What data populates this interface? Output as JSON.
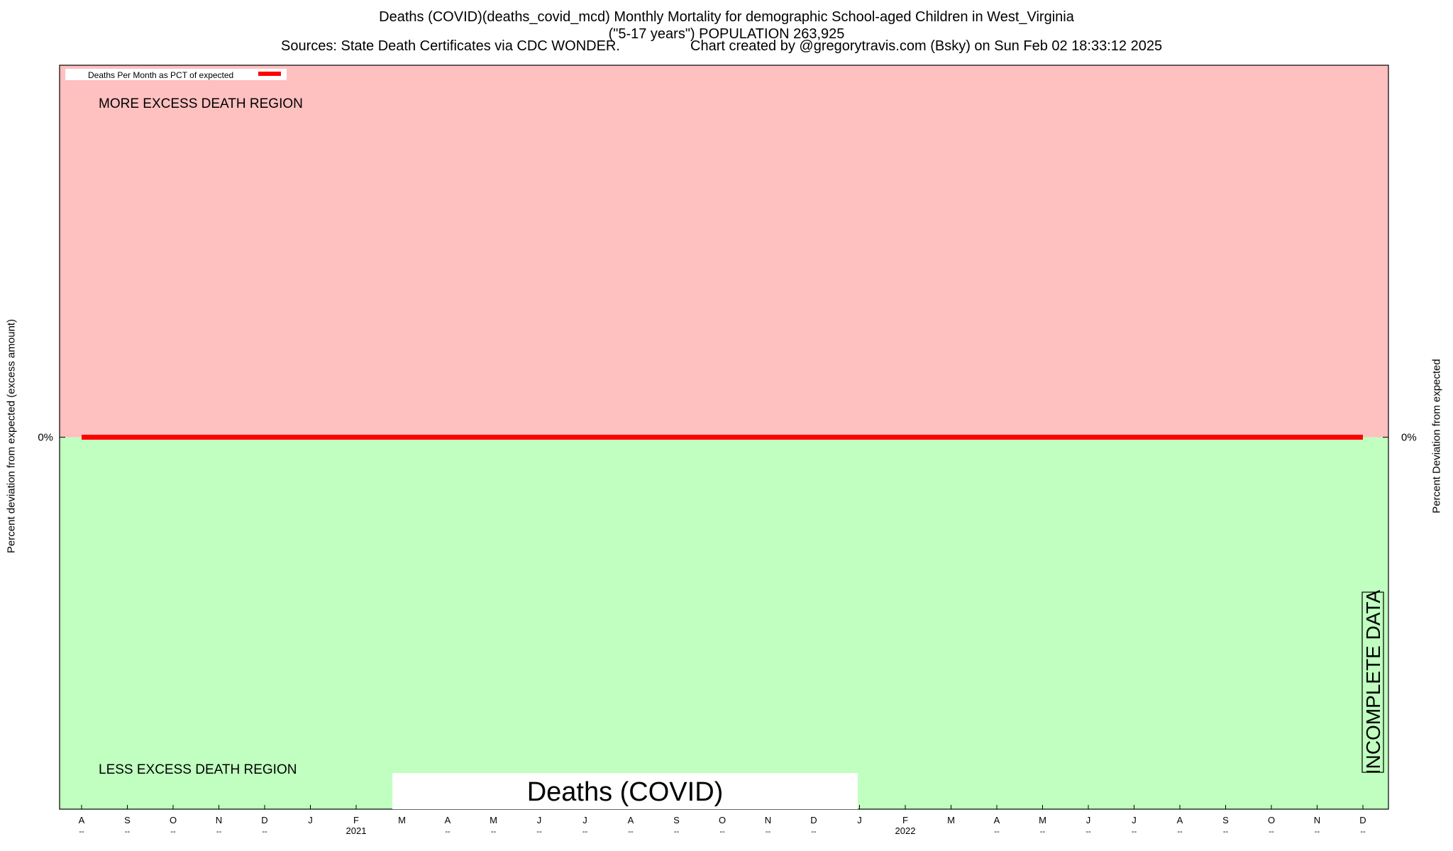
{
  "chart_data": {
    "type": "line",
    "title_lines": [
      "Deaths (COVID)(deaths_covid_mcd) Monthly Mortality for demographic School-aged Children in West_Virginia",
      "(\"5-17 years\") POPULATION 263,925"
    ],
    "sources": "Sources: State Death Certificates via CDC WONDER.",
    "credit": "Chart created by @gregorytravis.com (Bsky) on Sun Feb 02 18:33:12 2025",
    "ylabel_left": "Percent deviation from expected (excess amount)",
    "ylabel_right": "Percent Deviation from expected",
    "y_tick_label_left": "0%",
    "y_tick_label_right": "0%",
    "y_tick_value": 0,
    "ylim": [
      -100,
      100
    ],
    "grid": false,
    "legend_position": "top-left",
    "legend": "Deaths Per Month as PCT of expected",
    "region_upper_label": "MORE EXCESS DEATH REGION",
    "region_lower_label": "LESS EXCESS DEATH REGION",
    "incomplete_label": "INCOMPLETE DATA",
    "bottom_label": "Deaths (COVID)",
    "colors": {
      "upper_region": "#ffc0c0",
      "lower_region": "#c0ffc0",
      "series_line": "#ff0000"
    },
    "x_ticks": [
      {
        "month": "A",
        "sub": "--"
      },
      {
        "month": "S",
        "sub": "--"
      },
      {
        "month": "O",
        "sub": "--"
      },
      {
        "month": "N",
        "sub": "--"
      },
      {
        "month": "D",
        "sub": "--"
      },
      {
        "month": "J",
        "sub": ""
      },
      {
        "month": "F",
        "sub": "2021"
      },
      {
        "month": "M",
        "sub": ""
      },
      {
        "month": "A",
        "sub": "--"
      },
      {
        "month": "M",
        "sub": "--"
      },
      {
        "month": "J",
        "sub": "--"
      },
      {
        "month": "J",
        "sub": "--"
      },
      {
        "month": "A",
        "sub": "--"
      },
      {
        "month": "S",
        "sub": "--"
      },
      {
        "month": "O",
        "sub": "--"
      },
      {
        "month": "N",
        "sub": "--"
      },
      {
        "month": "D",
        "sub": "--"
      },
      {
        "month": "J",
        "sub": ""
      },
      {
        "month": "F",
        "sub": "2022"
      },
      {
        "month": "M",
        "sub": ""
      },
      {
        "month": "A",
        "sub": "--"
      },
      {
        "month": "M",
        "sub": "--"
      },
      {
        "month": "J",
        "sub": "--"
      },
      {
        "month": "J",
        "sub": "--"
      },
      {
        "month": "A",
        "sub": "--"
      },
      {
        "month": "S",
        "sub": "--"
      },
      {
        "month": "O",
        "sub": "--"
      },
      {
        "month": "N",
        "sub": "--"
      },
      {
        "month": "D",
        "sub": "--"
      }
    ],
    "series": [
      {
        "values": [
          0,
          0,
          0,
          0,
          0,
          0,
          0,
          0,
          0,
          0,
          0,
          0,
          0,
          0,
          0,
          0,
          0,
          0,
          0,
          0,
          0,
          0,
          0,
          0,
          0,
          0,
          0,
          0,
          0
        ]
      }
    ]
  }
}
